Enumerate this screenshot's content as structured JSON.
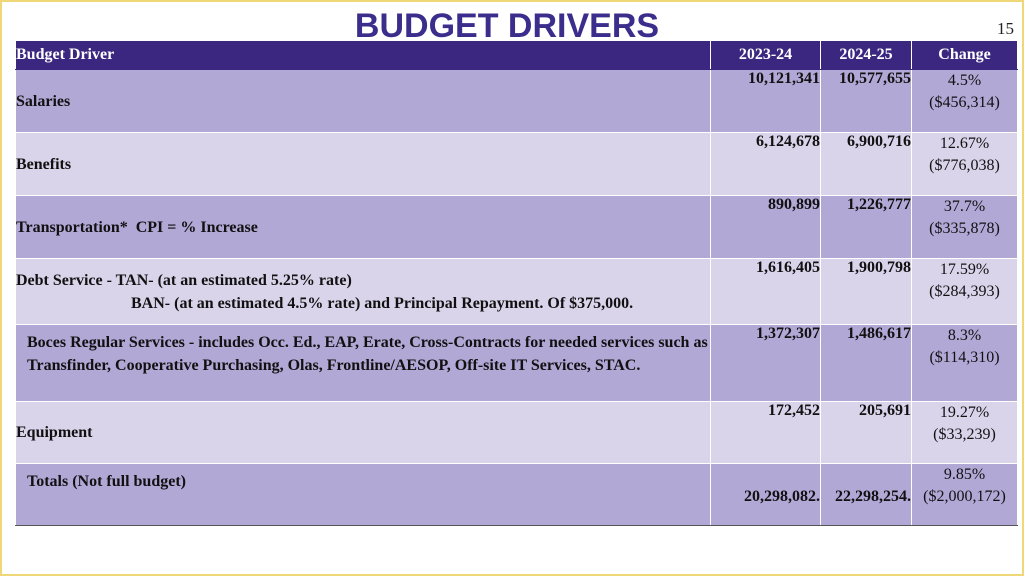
{
  "title": "BUDGET DRIVERS",
  "page_number": "15",
  "table": {
    "headers": {
      "driver": "Budget Driver",
      "y2023": "2023-24",
      "y2024": "2024-25",
      "change": "Change"
    },
    "rows": [
      {
        "driver": "Salaries",
        "y2023": "10,121,341",
        "y2024": "10,577,655",
        "pct": "4.5%",
        "amount": "($456,314)"
      },
      {
        "driver": "Benefits",
        "y2023": "6,124,678",
        "y2024": "6,900,716",
        "pct": "12.67%",
        "amount": "($776,038)"
      },
      {
        "driver": "Transportation*  CPI = % Increase",
        "y2023": "890,899",
        "y2024": "1,226,777",
        "pct": "37.7%",
        "amount": "($335,878)"
      },
      {
        "driver": "Debt Service - TAN- (at an estimated 5.25% rate)",
        "driver_line2": "BAN- (at an estimated 4.5% rate) and Principal Repayment. Of $375,000.",
        "y2023": "1,616,405",
        "y2024": "1,900,798",
        "pct": "17.59%",
        "amount": "($284,393)"
      },
      {
        "driver": "Boces Regular Services - includes Occ. Ed., EAP, Erate, Cross-Contracts for needed services such as Transfinder, Cooperative Purchasing, Olas, Frontline/AESOP, Off-site IT Services, STAC.",
        "y2023": "1,372,307",
        "y2024": "1,486,617",
        "pct": "8.3%",
        "amount": "($114,310)"
      },
      {
        "driver": "Equipment",
        "y2023": "172,452",
        "y2024": "205,691",
        "pct": "19.27%",
        "amount": "($33,239)"
      },
      {
        "driver": "Totals (Not full budget)",
        "y2023": "20,298,082.",
        "y2024": "22,298,254.",
        "pct": "9.85%",
        "amount": "($2,000,172)"
      }
    ]
  },
  "colors": {
    "header_bg": "#3b2780",
    "row_dark": "#b1a8d6",
    "row_light": "#d9d4ea",
    "title_color": "#3b2d8c"
  }
}
